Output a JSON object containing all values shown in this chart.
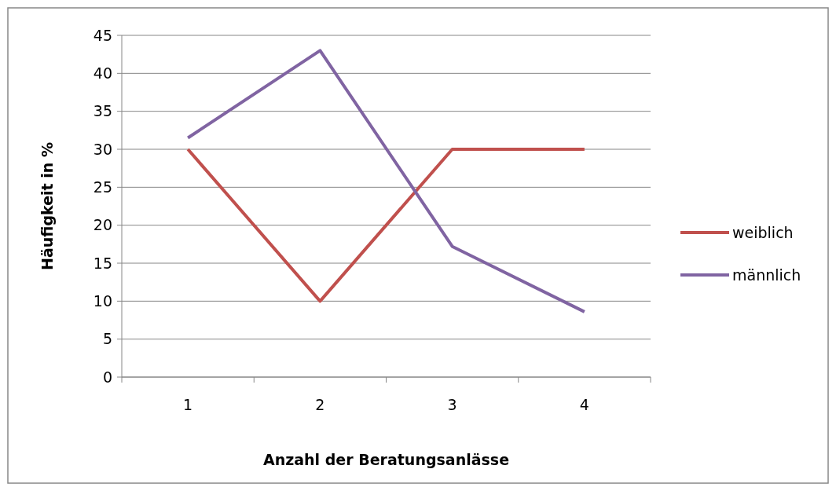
{
  "chart_data": {
    "type": "line",
    "xlabel": "Anzahl der Beratungsanlässe",
    "ylabel": "Häufigkeit in %",
    "categories": [
      "1",
      "2",
      "3",
      "4"
    ],
    "series": [
      {
        "name": "weiblich",
        "color": "#c0504d",
        "values": [
          30,
          10,
          30,
          30
        ]
      },
      {
        "name": "männlich",
        "color": "#8064a2",
        "values": [
          31.5,
          43,
          17.2,
          8.6
        ]
      }
    ],
    "ylim": [
      0,
      45
    ],
    "yticks": [
      0,
      5,
      10,
      15,
      20,
      25,
      30,
      35,
      40,
      45
    ],
    "grid": "y",
    "legend": "right",
    "marker": "none",
    "line_style": "solid"
  }
}
